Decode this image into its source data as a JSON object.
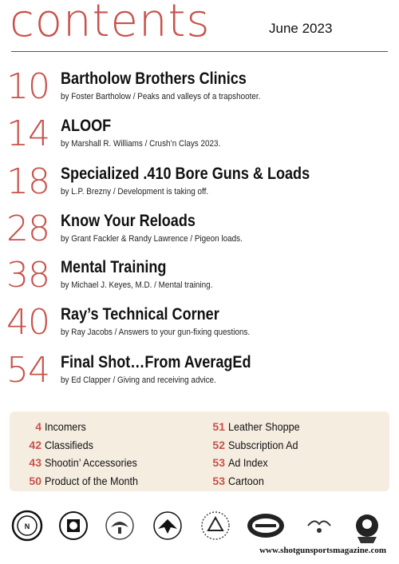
{
  "header": {
    "title": "contents",
    "date": "June 2023"
  },
  "articles": [
    {
      "page": "10",
      "title": "Bartholow Brothers Clinics",
      "byline": "by Foster Bartholow / Peaks and valleys of a trapshooter."
    },
    {
      "page": "14",
      "title": "ALOOF",
      "byline": "by Marshall R. Williams / Crush’n Clays 2023."
    },
    {
      "page": "18",
      "title": "Specialized .410 Bore Guns & Loads",
      "byline": "by L.P. Brezny / Development is taking off."
    },
    {
      "page": "28",
      "title": "Know Your Reloads",
      "byline": "by Grant Fackler & Randy Lawrence / Pigeon loads."
    },
    {
      "page": "38",
      "title": "Mental Training",
      "byline": "by Michael J. Keyes, M.D. / Mental training."
    },
    {
      "page": "40",
      "title": "Ray’s Technical Corner",
      "byline": "by Ray Jacobs / Answers to your gun-fixing questions."
    },
    {
      "page": "54",
      "title": "Final Shot…From AveragEd",
      "byline": "by Ed Clapper / Giving and receiving advice."
    }
  ],
  "departments": {
    "left": [
      {
        "page": "4",
        "label": "Incomers"
      },
      {
        "page": "42",
        "label": "Classifieds"
      },
      {
        "page": "43",
        "label": "Shootin’ Accessories"
      },
      {
        "page": "50",
        "label": "Product of the Month"
      }
    ],
    "right": [
      {
        "page": "51",
        "label": "Leather Shoppe"
      },
      {
        "page": "52",
        "label": "Subscription Ad"
      },
      {
        "page": "53",
        "label": "Ad Index"
      },
      {
        "page": "53",
        "label": "Cartoon"
      }
    ]
  },
  "logos": [
    "nra-logo",
    "trap-association-logo",
    "eagle-emblem-logo",
    "bird-emblem-logo",
    "sporting-clays-logo",
    "shotgun-sports-logo",
    "bird-sketch-logo",
    "hunter-mascot-logo"
  ],
  "footer": {
    "url": "www.shotgunsportsmagazine.com"
  },
  "colors": {
    "accent": "#c8524a",
    "box": "#f6ede1"
  }
}
